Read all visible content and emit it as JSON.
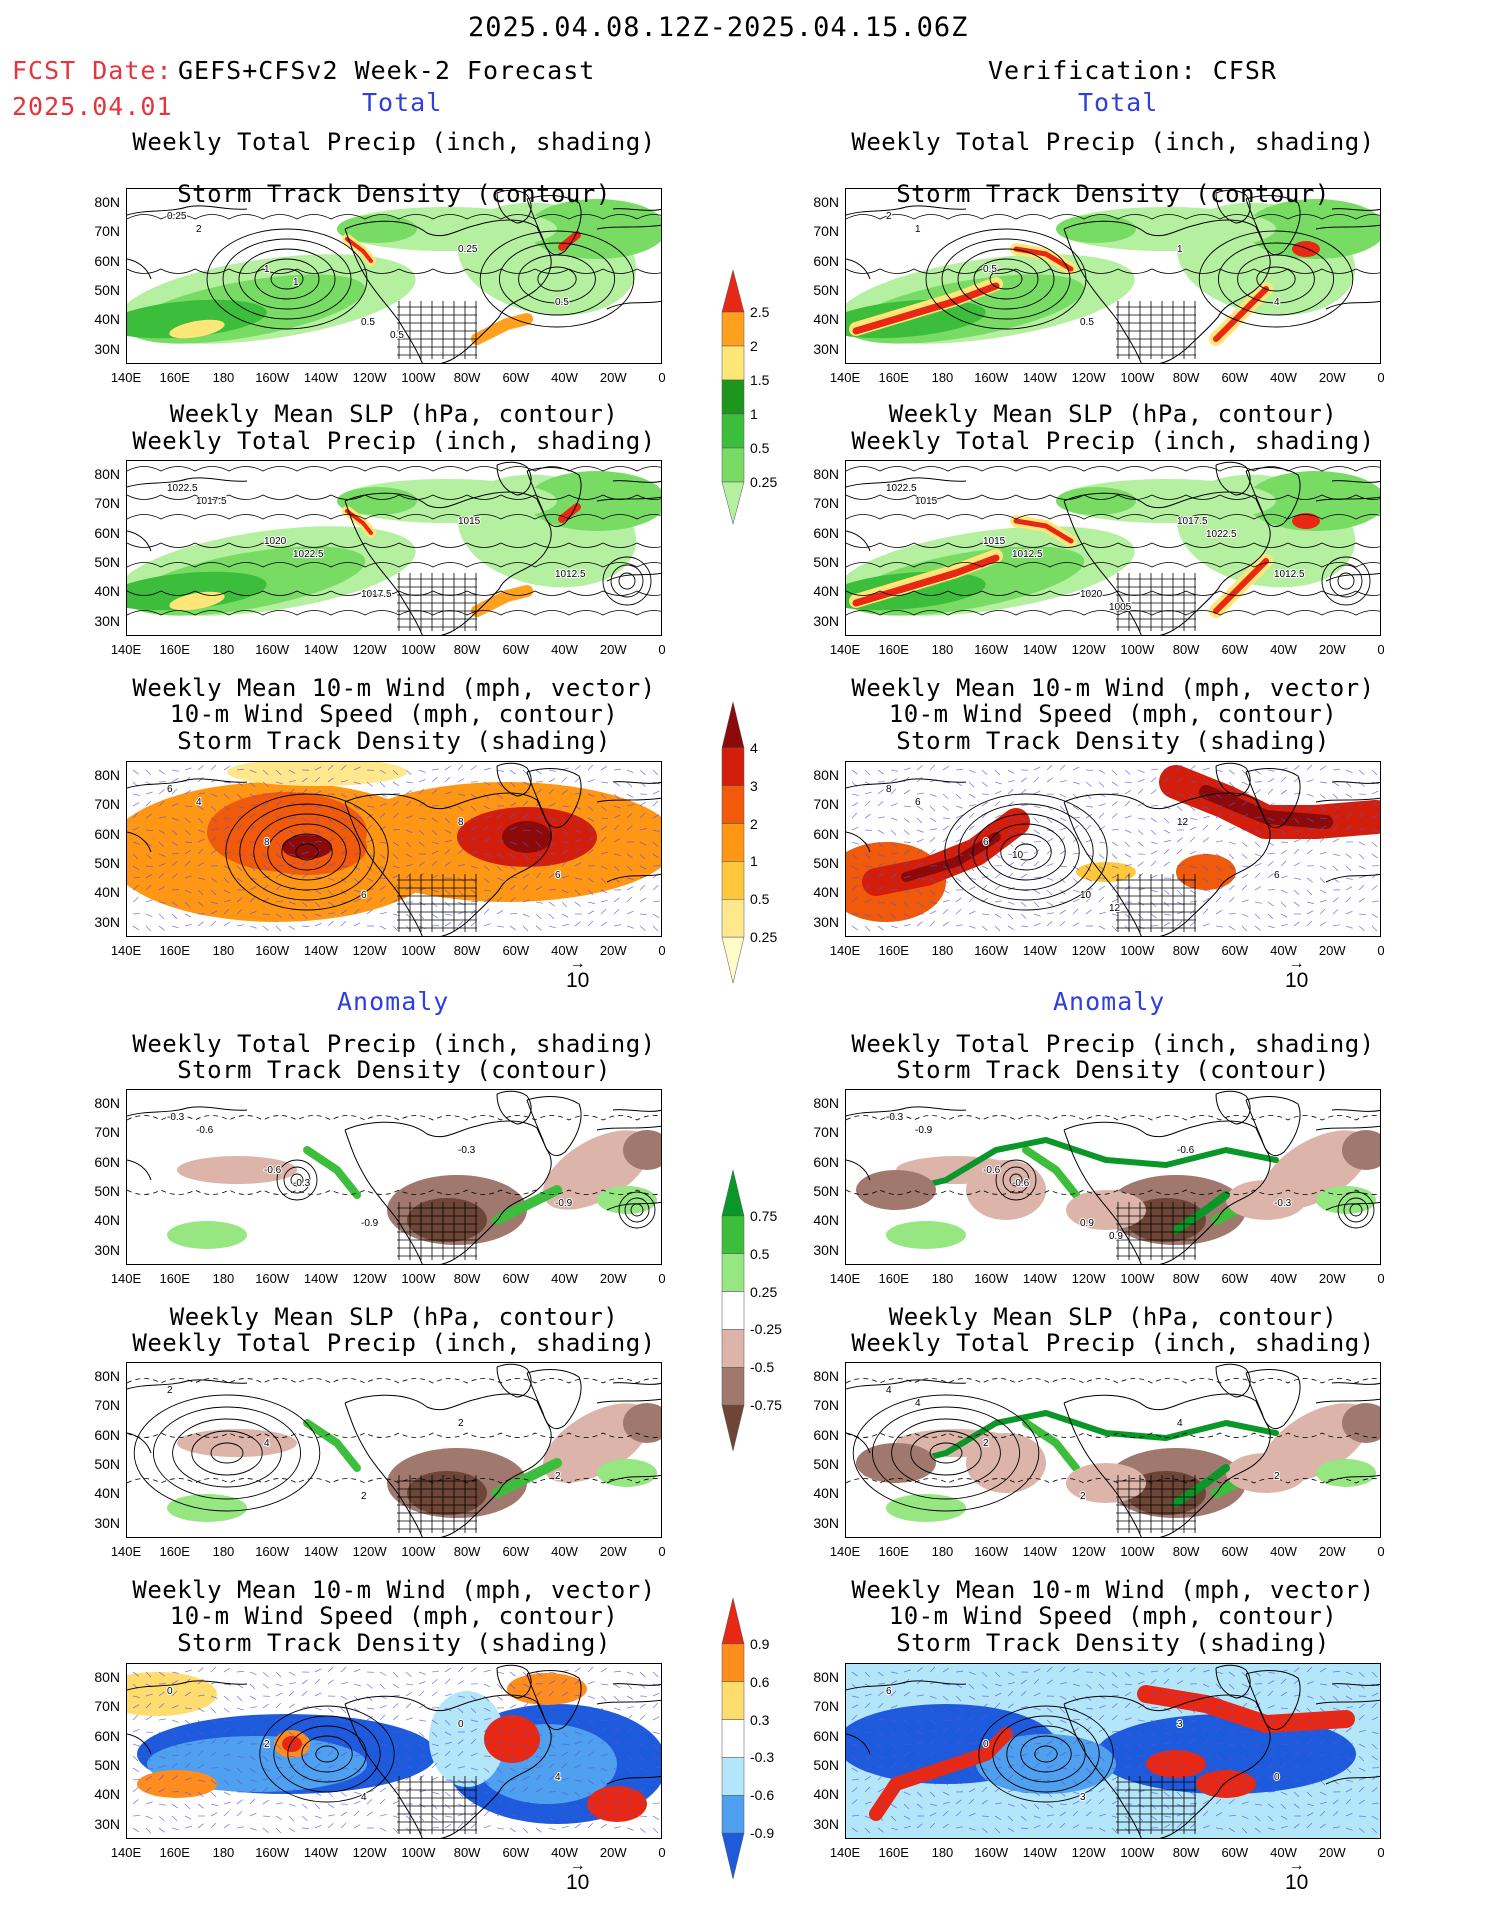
{
  "header": {
    "date_range": "2025.04.08.12Z-2025.04.15.06Z",
    "fcst_date_label": "FCST Date:",
    "fcst_product": "GEFS+CFSv2 Week-2 Forecast",
    "fcst_date": "2025.04.01",
    "verification": "Verification: CFSR"
  },
  "sections": {
    "total": "Total",
    "anomaly": "Anomaly"
  },
  "titles": {
    "precip_track": [
      "Weekly Total Precip (inch, shading)",
      "Storm Track Density (contour)"
    ],
    "slp_precip": [
      "Weekly Mean SLP (hPa, contour)",
      "Weekly Total Precip (inch, shading)"
    ],
    "wind": [
      "Weekly Mean 10-m Wind (mph, vector)",
      "10-m Wind Speed (mph, contour)",
      "Storm Track Density (shading)"
    ]
  },
  "axes": {
    "lat_labels": [
      "80N",
      "70N",
      "60N",
      "50N",
      "40N",
      "30N"
    ],
    "lon_labels": [
      "140E",
      "160E",
      "180",
      "160W",
      "140W",
      "120W",
      "100W",
      "80W",
      "60W",
      "40W",
      "20W",
      "0"
    ]
  },
  "vector_reference": "10",
  "colorbars": {
    "precip_total": {
      "levels": [
        "0.25",
        "0.5",
        "1",
        "1.5",
        "2",
        "2.5"
      ],
      "colors": [
        "#b4f0a0",
        "#78dc64",
        "#3cbe3c",
        "#1e961e",
        "#ffe678",
        "#ffa01e",
        "#e62814"
      ]
    },
    "track_total": {
      "levels": [
        "0.25",
        "0.5",
        "1",
        "2",
        "3",
        "4"
      ],
      "colors": [
        "#fffac8",
        "#ffe88c",
        "#ffc83c",
        "#ff9614",
        "#f05a0a",
        "#d21e0a",
        "#8c0a0a"
      ]
    },
    "precip_anom": {
      "levels": [
        "0.75",
        "0.5",
        "0.25",
        "-0.25",
        "-0.5",
        "-0.75"
      ],
      "colors": [
        "#0a9628",
        "#3cbe3c",
        "#96e682",
        "#ffffff",
        "#dcb4aa",
        "#a0786e",
        "#6e4637"
      ]
    },
    "track_anom": {
      "levels": [
        "0.9",
        "0.6",
        "0.3",
        "-0.3",
        "-0.6",
        "-0.9"
      ],
      "colors": [
        "#e62814",
        "#ff8c1e",
        "#ffdc6e",
        "#ffffff",
        "#b4e6fa",
        "#50a0f0",
        "#1e5adc"
      ]
    }
  },
  "panel_labels": {
    "total_fcst_precip": [
      "0.25",
      "1",
      "0.5",
      "0.25",
      "0.5",
      "2",
      "1",
      "0.5"
    ],
    "total_fcst_slp": [
      "1022.5",
      "1020",
      "1017.5",
      "1015",
      "1012.5",
      "1017.5",
      "1022.5"
    ],
    "total_fcst_wind": [
      "6",
      "8",
      "6",
      "8",
      "6",
      "4"
    ],
    "total_ver_precip": [
      "2",
      "0.5",
      "0.5",
      "1",
      "4",
      "1"
    ],
    "total_ver_slp": [
      "1022.5",
      "1015",
      "1020",
      "1017.5",
      "1012.5",
      "1015",
      "1012.5",
      "1005",
      "1022.5"
    ],
    "total_ver_wind": [
      "8",
      "6",
      "10",
      "12",
      "6",
      "6",
      "10",
      "12"
    ],
    "anom_fcst_precip": [
      "-0.3",
      "-0.6",
      "-0.9",
      "-0.3",
      "-0.9",
      "-0.6",
      "-0.3"
    ],
    "anom_fcst_slp": [
      "2",
      "4",
      "2",
      "2",
      "2"
    ],
    "anom_fcst_wind": [
      "0",
      "2",
      "4",
      "0",
      "4"
    ],
    "anom_ver_precip": [
      "-0.3",
      "-0.6",
      "0.9",
      "-0.6",
      "-0.3",
      "-0.9",
      "-0.6",
      "0.9"
    ],
    "anom_ver_slp": [
      "4",
      "2",
      "2",
      "4",
      "2",
      "4"
    ],
    "anom_ver_wind": [
      "6",
      "0",
      "3",
      "3",
      "0"
    ]
  }
}
